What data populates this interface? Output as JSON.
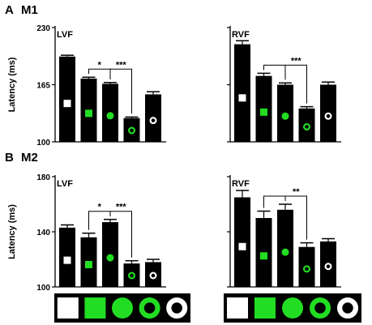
{
  "chart_data": [
    {
      "type": "bar",
      "panel_letter": "A",
      "panel_label": "M1",
      "ylabel": "Latency (ms)",
      "ylim": [
        100,
        230
      ],
      "yticks": [
        100,
        165,
        230
      ],
      "subplots": [
        {
          "title": "LVF",
          "categories": [
            "square",
            "filled green square",
            "filled green circle",
            "green ring",
            "white ring"
          ],
          "values": [
            197,
            172,
            166,
            127,
            154
          ],
          "errors": [
            1.5,
            1.5,
            1.5,
            1.2,
            3
          ],
          "significance": [
            {
              "from": 1,
              "to": 2,
              "label": "*"
            },
            {
              "from": 2,
              "to": 3,
              "label": "***"
            }
          ]
        },
        {
          "title": "RVF",
          "categories": [
            "square",
            "filled green square",
            "filled green circle",
            "green ring",
            "white ring"
          ],
          "values": [
            211,
            175,
            165,
            138,
            165
          ],
          "errors": [
            4,
            3,
            2,
            2,
            3
          ],
          "significance": [
            {
              "from": 1,
              "to": 2,
              "label": ""
            },
            {
              "from": 2,
              "to": 3,
              "label": "***"
            }
          ]
        }
      ]
    },
    {
      "type": "bar",
      "panel_letter": "B",
      "panel_label": "M2",
      "ylabel": "Latency (ms)",
      "ylim": [
        100,
        180
      ],
      "yticks": [
        100,
        140,
        180
      ],
      "subplots": [
        {
          "title": "LVF",
          "categories": [
            "square",
            "filled green square",
            "filled green circle",
            "green ring",
            "white ring"
          ],
          "values": [
            143,
            136,
            147,
            117,
            118
          ],
          "errors": [
            2,
            3,
            2,
            2,
            2
          ],
          "significance": [
            {
              "from": 1,
              "to": 2,
              "label": "*"
            },
            {
              "from": 2,
              "to": 3,
              "label": "***"
            }
          ]
        },
        {
          "title": "RVF",
          "categories": [
            "square",
            "filled green square",
            "filled green circle",
            "green ring",
            "white ring"
          ],
          "values": [
            165,
            150,
            156,
            129,
            133
          ],
          "errors": [
            5,
            5,
            4,
            3,
            2
          ],
          "significance": [
            {
              "from": 1,
              "to": 2,
              "label": ""
            },
            {
              "from": 2,
              "to": 3,
              "label": "**"
            }
          ]
        }
      ]
    }
  ],
  "colors": {
    "bar": "#000000",
    "green": "#22dd22",
    "white": "#ffffff"
  },
  "stimulus_icons": [
    "white-square",
    "green-square",
    "green-circle",
    "green-ring",
    "white-ring"
  ]
}
